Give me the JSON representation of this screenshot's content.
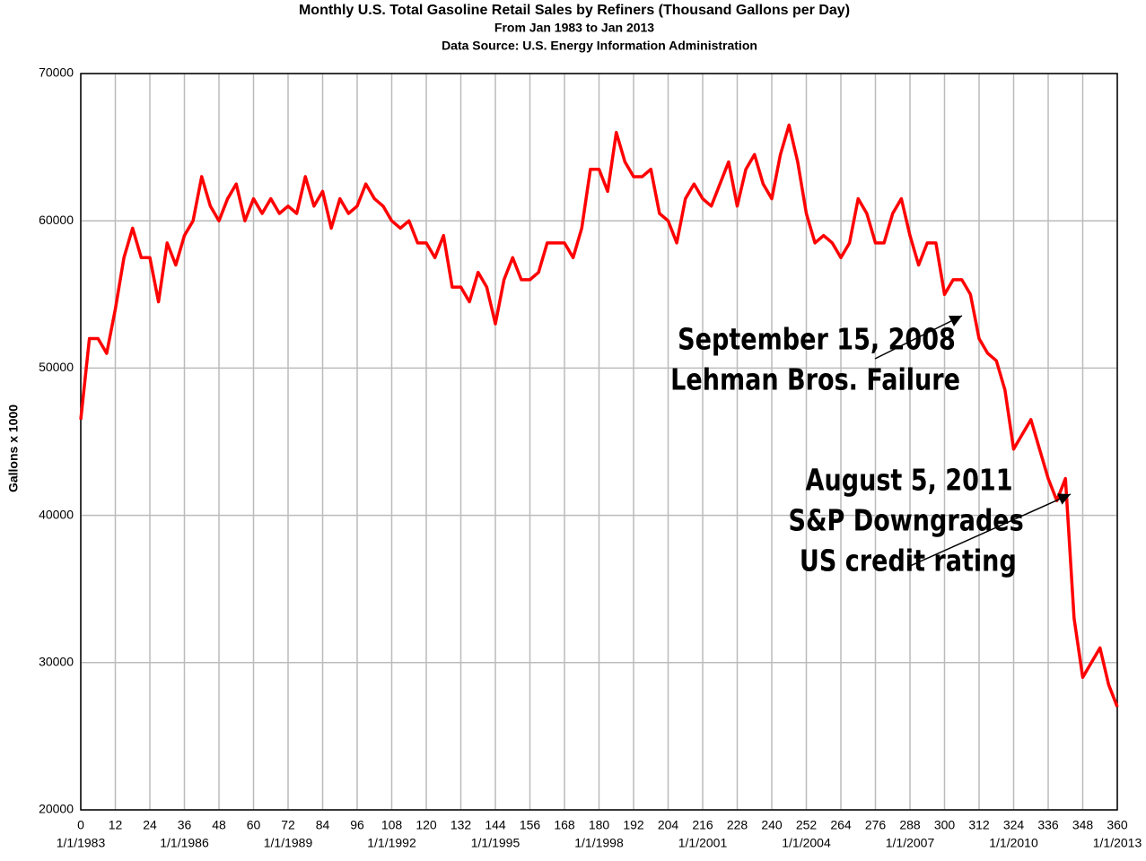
{
  "chart_data": {
    "type": "line",
    "title": "Monthly U.S. Total Gasoline Retail Sales by Refiners (Thousand Gallons per Day)",
    "subtitle": "From Jan 1983 to Jan 2013",
    "source": "Data Source: U.S. Energy Information Administration",
    "y_label": "Gallons x 1000",
    "x": [
      0,
      3,
      6,
      9,
      12,
      15,
      18,
      21,
      24,
      27,
      30,
      33,
      36,
      39,
      42,
      45,
      48,
      51,
      54,
      57,
      60,
      63,
      66,
      69,
      72,
      75,
      78,
      81,
      84,
      87,
      90,
      93,
      96,
      99,
      102,
      105,
      108,
      111,
      114,
      117,
      120,
      123,
      126,
      129,
      132,
      135,
      138,
      141,
      144,
      147,
      150,
      153,
      156,
      159,
      162,
      165,
      168,
      171,
      174,
      177,
      180,
      183,
      186,
      189,
      192,
      195,
      198,
      201,
      204,
      207,
      210,
      213,
      216,
      219,
      222,
      225,
      228,
      231,
      234,
      237,
      240,
      243,
      246,
      249,
      252,
      255,
      258,
      261,
      264,
      267,
      270,
      273,
      276,
      279,
      282,
      285,
      288,
      291,
      294,
      297,
      300,
      303,
      306,
      309,
      312,
      315,
      318,
      321,
      324,
      327,
      330,
      333,
      336,
      339,
      342,
      345,
      348,
      351,
      354,
      357,
      360
    ],
    "series": [
      {
        "name": "Gasoline Retail Sales",
        "color": "#ff0000",
        "values": [
          46500,
          52000,
          52000,
          51000,
          54000,
          57500,
          59500,
          57500,
          57500,
          54500,
          58500,
          57000,
          59000,
          60000,
          63000,
          61000,
          60000,
          61500,
          62500,
          60000,
          61500,
          60500,
          61500,
          60500,
          61000,
          60500,
          63000,
          61000,
          62000,
          59500,
          61500,
          60500,
          61000,
          62500,
          61500,
          61000,
          60000,
          59500,
          60000,
          58500,
          58500,
          57500,
          59000,
          55500,
          55500,
          54500,
          56500,
          55500,
          53000,
          56000,
          57500,
          56000,
          56000,
          56500,
          58500,
          58500,
          58500,
          57500,
          59500,
          63500,
          63500,
          62000,
          66000,
          64000,
          63000,
          63000,
          63500,
          60500,
          60000,
          58500,
          61500,
          62500,
          61500,
          61000,
          62500,
          64000,
          61000,
          63500,
          64500,
          62500,
          61500,
          64500,
          66500,
          64000,
          60500,
          58500,
          59000,
          58500,
          57500,
          58500,
          61500,
          60500,
          58500,
          58500,
          60500,
          61500,
          59000,
          57000,
          58500,
          58500,
          55000,
          56000,
          56000,
          55000,
          52000,
          51000,
          50500,
          48500,
          44500,
          45500,
          46500,
          44500,
          42500,
          41000,
          42500,
          33000,
          29000,
          30000,
          31000,
          28500,
          27000
        ]
      }
    ],
    "xlim": [
      0,
      360
    ],
    "xticks": [
      0,
      12,
      24,
      36,
      48,
      60,
      72,
      84,
      96,
      108,
      120,
      132,
      144,
      156,
      168,
      180,
      192,
      204,
      216,
      228,
      240,
      252,
      264,
      276,
      288,
      300,
      312,
      324,
      336,
      348,
      360
    ],
    "xticks_dates": [
      {
        "value": 0,
        "label": "1/1/1983"
      },
      {
        "value": 36,
        "label": "1/1/1986"
      },
      {
        "value": 72,
        "label": "1/1/1989"
      },
      {
        "value": 108,
        "label": "1/1/1992"
      },
      {
        "value": 144,
        "label": "1/1/1995"
      },
      {
        "value": 180,
        "label": "1/1/1998"
      },
      {
        "value": 216,
        "label": "1/1/2001"
      },
      {
        "value": 252,
        "label": "1/1/2004"
      },
      {
        "value": 288,
        "label": "1/1/2007"
      },
      {
        "value": 324,
        "label": "1/1/2010"
      },
      {
        "value": 360,
        "label": "1/1/2013"
      }
    ],
    "ylim": [
      20000,
      70000
    ],
    "yticks": [
      20000,
      30000,
      40000,
      50000,
      60000,
      70000
    ],
    "grid": true,
    "annotations": [
      {
        "lines": [
          "September 15, 2008",
          "Lehman Bros. Failure"
        ]
      },
      {
        "lines": [
          "August 5, 2011",
          "S&P Downgrades",
          "US credit rating"
        ]
      }
    ]
  }
}
